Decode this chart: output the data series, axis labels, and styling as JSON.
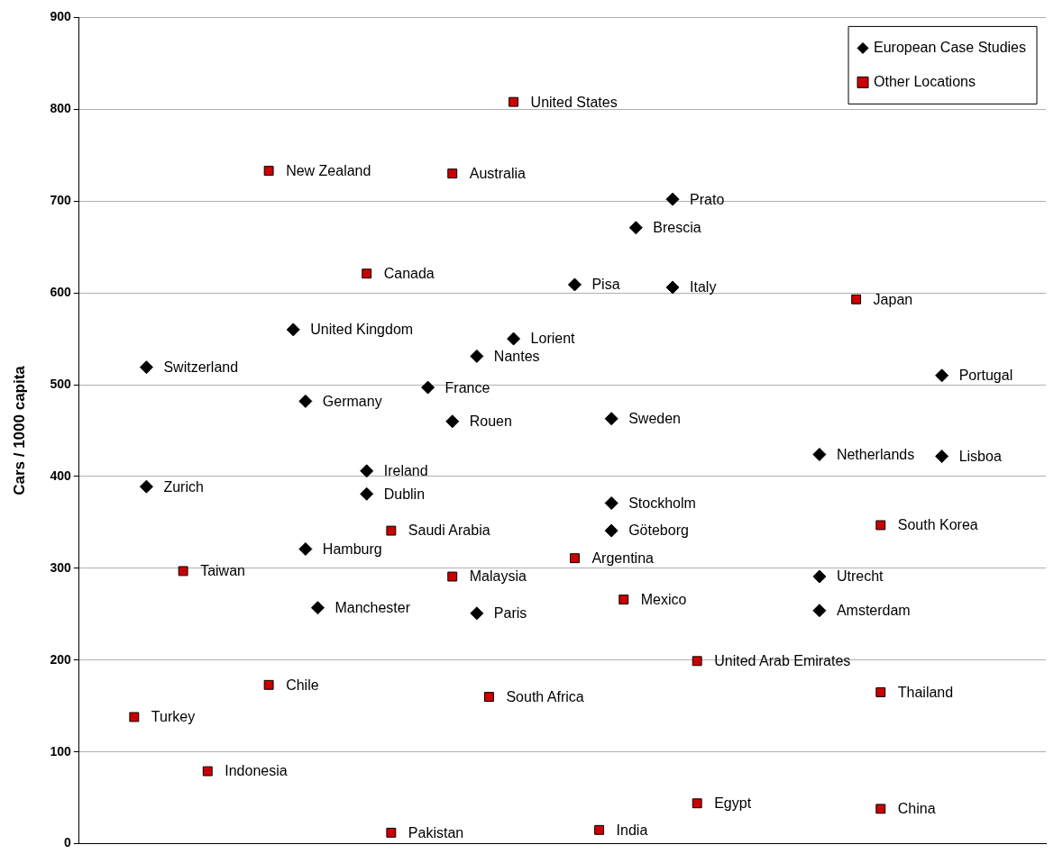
{
  "chart_data": {
    "type": "scatter",
    "ylabel": "Cars / 1000 capita",
    "ylim": [
      0,
      900
    ],
    "yticks": [
      0,
      100,
      200,
      300,
      400,
      500,
      600,
      700,
      800,
      900
    ],
    "tick_labels": "y",
    "grid": "y",
    "legend": "top right",
    "categories": [
      null,
      null,
      null,
      null,
      null,
      null,
      null,
      null,
      null,
      null,
      null,
      null,
      null,
      null,
      null,
      null,
      null,
      null,
      null,
      null,
      null,
      null,
      null,
      null,
      null,
      null,
      null,
      null,
      null,
      null,
      null,
      null,
      null,
      null,
      null,
      null,
      null,
      null,
      null,
      null,
      null,
      null,
      null,
      null,
      null,
      null,
      null,
      null,
      null,
      null,
      null,
      null,
      null,
      null,
      null,
      null,
      null,
      null,
      null,
      null,
      null,
      null,
      null,
      null,
      null,
      null,
      null,
      null,
      null,
      null,
      null,
      null,
      null,
      null,
      null,
      null,
      null,
      null,
      null
    ],
    "series": [
      {
        "name": "European Case Studies",
        "color": "#000000",
        "marker": "diamond",
        "values": [
          null,
          null,
          null,
          null,
          null,
          519,
          null,
          null,
          null,
          null,
          null,
          null,
          null,
          null,
          null,
          null,
          null,
          560,
          482,
          257,
          null,
          null,
          null,
          406,
          null,
          null,
          null,
          null,
          497,
          null,
          460,
          null,
          531,
          null,
          null,
          550,
          null,
          null,
          null,
          null,
          609,
          null,
          null,
          463,
          null,
          671,
          null,
          null,
          702,
          null,
          null,
          null,
          null,
          null,
          null,
          null,
          null,
          null,
          null,
          null,
          424,
          null,
          null,
          null,
          null,
          null,
          null,
          null,
          null,
          null,
          510,
          null,
          null,
          null,
          null,
          null,
          null,
          null,
          null
        ],
        "value_labels": [
          null,
          null,
          null,
          null,
          null,
          "Switzerland",
          null,
          null,
          null,
          null,
          null,
          null,
          null,
          null,
          null,
          null,
          null,
          "United Kingdom",
          "Germany",
          "Manchester",
          null,
          null,
          null,
          "Ireland",
          null,
          null,
          null,
          null,
          "France",
          null,
          "Rouen",
          null,
          "Nantes",
          null,
          null,
          "Lorient",
          null,
          null,
          null,
          null,
          "Pisa",
          null,
          null,
          "Sweden",
          null,
          "Brescia",
          null,
          null,
          "Prato",
          null,
          null,
          null,
          null,
          null,
          null,
          null,
          null,
          null,
          null,
          null,
          "Netherlands",
          null,
          null,
          null,
          null,
          null,
          null,
          null,
          null,
          null,
          "Portugal",
          null,
          null,
          null,
          null,
          null,
          null,
          null,
          null
        ]
      },
      {
        "color": "#000000",
        "marker": "diamond",
        "values": [
          null,
          null,
          null,
          null,
          null,
          389,
          null,
          null,
          null,
          null,
          null,
          null,
          null,
          null,
          null,
          null,
          null,
          null,
          321,
          null,
          null,
          null,
          null,
          381,
          null,
          null,
          null,
          null,
          null,
          null,
          null,
          null,
          251,
          null,
          null,
          null,
          null,
          null,
          null,
          null,
          null,
          null,
          null,
          371,
          null,
          null,
          null,
          null,
          606,
          null,
          null,
          null,
          null,
          null,
          null,
          null,
          null,
          null,
          null,
          null,
          291,
          null,
          null,
          null,
          null,
          null,
          null,
          null,
          null,
          null,
          422,
          null,
          null,
          null,
          null,
          null,
          null,
          null,
          null
        ],
        "value_labels": [
          null,
          null,
          null,
          null,
          null,
          "Zurich",
          null,
          null,
          null,
          null,
          null,
          null,
          null,
          null,
          null,
          null,
          null,
          null,
          "Hamburg",
          null,
          null,
          null,
          null,
          "Dublin",
          null,
          null,
          null,
          null,
          null,
          null,
          null,
          null,
          "Paris",
          null,
          null,
          null,
          null,
          null,
          null,
          null,
          null,
          null,
          null,
          "Stockholm",
          null,
          null,
          null,
          null,
          "Italy",
          null,
          null,
          null,
          null,
          null,
          null,
          null,
          null,
          null,
          null,
          null,
          "Utrecht",
          null,
          null,
          null,
          null,
          null,
          null,
          null,
          null,
          null,
          "Lisboa",
          null,
          null,
          null,
          null,
          null,
          null,
          null,
          null
        ]
      },
      {
        "color": "#000000",
        "marker": "diamond",
        "values": [
          null,
          null,
          null,
          null,
          null,
          null,
          null,
          null,
          null,
          null,
          null,
          null,
          null,
          null,
          null,
          null,
          null,
          null,
          null,
          null,
          null,
          null,
          null,
          null,
          null,
          null,
          null,
          null,
          null,
          null,
          null,
          null,
          null,
          null,
          null,
          null,
          null,
          null,
          null,
          null,
          null,
          null,
          null,
          341,
          null,
          null,
          null,
          null,
          null,
          null,
          null,
          null,
          null,
          null,
          null,
          null,
          null,
          null,
          null,
          null,
          254,
          null,
          null,
          null,
          null,
          null,
          null,
          null,
          null,
          null,
          null,
          null,
          null,
          null,
          null,
          null,
          null,
          null,
          null
        ],
        "value_labels": [
          null,
          null,
          null,
          null,
          null,
          null,
          null,
          null,
          null,
          null,
          null,
          null,
          null,
          null,
          null,
          null,
          null,
          null,
          null,
          null,
          null,
          null,
          null,
          null,
          null,
          null,
          null,
          null,
          null,
          null,
          null,
          null,
          null,
          null,
          null,
          null,
          null,
          null,
          null,
          null,
          null,
          null,
          null,
          "Göteborg",
          null,
          null,
          null,
          null,
          null,
          null,
          null,
          null,
          null,
          null,
          null,
          null,
          null,
          null,
          null,
          null,
          "Amsterdam",
          null,
          null,
          null,
          null,
          null,
          null,
          null,
          null,
          null,
          null,
          null,
          null,
          null,
          null,
          null,
          null,
          null,
          null
        ]
      },
      {
        "name": "Other Locations",
        "color": "#cc0000",
        "marker": "square",
        "values": [
          null,
          null,
          null,
          null,
          138,
          null,
          null,
          null,
          297,
          null,
          79,
          null,
          null,
          null,
          null,
          733,
          null,
          null,
          null,
          null,
          null,
          null,
          null,
          621,
          null,
          341,
          null,
          null,
          null,
          null,
          730,
          null,
          null,
          160,
          null,
          808,
          null,
          null,
          null,
          null,
          311,
          null,
          15,
          null,
          266,
          null,
          null,
          null,
          null,
          null,
          199,
          null,
          null,
          null,
          null,
          null,
          null,
          null,
          null,
          null,
          null,
          null,
          null,
          593,
          null,
          347,
          null,
          null,
          null,
          null,
          null,
          null,
          null,
          null,
          null,
          null,
          null,
          null,
          null
        ],
        "value_labels": [
          null,
          null,
          null,
          null,
          "Turkey",
          null,
          null,
          null,
          "Taiwan",
          null,
          "Indonesia",
          null,
          null,
          null,
          null,
          "New Zealand",
          null,
          null,
          null,
          null,
          null,
          null,
          null,
          "Canada",
          null,
          "Saudi Arabia",
          null,
          null,
          null,
          null,
          "Australia",
          null,
          null,
          "South Africa",
          null,
          "United States",
          null,
          null,
          null,
          null,
          "Argentina",
          null,
          "India",
          null,
          "Mexico",
          null,
          null,
          null,
          null,
          null,
          "United Arab Emirates",
          null,
          null,
          null,
          null,
          null,
          null,
          null,
          null,
          null,
          null,
          null,
          null,
          "Japan",
          null,
          "South Korea",
          null,
          null,
          null,
          null,
          null,
          null,
          null,
          null,
          null,
          null,
          null,
          null,
          null
        ]
      },
      {
        "color": "#cc0000",
        "marker": "square",
        "values": [
          null,
          null,
          null,
          null,
          null,
          null,
          null,
          null,
          null,
          null,
          null,
          null,
          null,
          null,
          null,
          173,
          null,
          null,
          null,
          null,
          null,
          null,
          null,
          null,
          null,
          12,
          null,
          null,
          null,
          null,
          291,
          null,
          null,
          null,
          null,
          null,
          null,
          null,
          null,
          null,
          null,
          null,
          null,
          null,
          null,
          null,
          null,
          null,
          null,
          null,
          44,
          null,
          null,
          null,
          null,
          null,
          null,
          null,
          null,
          null,
          null,
          null,
          null,
          null,
          null,
          165,
          null,
          null,
          null,
          null,
          null,
          null,
          null,
          null,
          null,
          null,
          null,
          null,
          null
        ],
        "value_labels": [
          null,
          null,
          null,
          null,
          null,
          null,
          null,
          null,
          null,
          null,
          null,
          null,
          null,
          null,
          null,
          "Chile",
          null,
          null,
          null,
          null,
          null,
          null,
          null,
          null,
          null,
          "Pakistan",
          null,
          null,
          null,
          null,
          "Malaysia",
          null,
          null,
          null,
          null,
          null,
          null,
          null,
          null,
          null,
          null,
          null,
          null,
          null,
          null,
          null,
          null,
          null,
          null,
          null,
          "Egypt",
          null,
          null,
          null,
          null,
          null,
          null,
          null,
          null,
          null,
          null,
          null,
          null,
          null,
          null,
          "Thailand",
          null,
          null,
          null,
          null,
          null,
          null,
          null,
          null,
          null,
          null,
          null,
          null,
          null
        ]
      },
      {
        "color": "#cc0000",
        "marker": "square",
        "values": [
          null,
          null,
          null,
          null,
          null,
          null,
          null,
          null,
          null,
          null,
          null,
          null,
          null,
          null,
          null,
          null,
          null,
          null,
          null,
          null,
          null,
          null,
          null,
          null,
          null,
          null,
          null,
          null,
          null,
          null,
          null,
          null,
          null,
          null,
          null,
          null,
          null,
          null,
          null,
          null,
          null,
          null,
          null,
          null,
          null,
          null,
          null,
          null,
          null,
          null,
          null,
          null,
          null,
          null,
          null,
          null,
          null,
          null,
          null,
          null,
          null,
          null,
          null,
          null,
          null,
          38,
          null,
          null,
          null,
          null,
          null,
          null,
          null,
          null,
          null,
          null,
          null,
          null,
          null
        ],
        "value_labels": [
          null,
          null,
          null,
          null,
          null,
          null,
          null,
          null,
          null,
          null,
          null,
          null,
          null,
          null,
          null,
          null,
          null,
          null,
          null,
          null,
          null,
          null,
          null,
          null,
          null,
          null,
          null,
          null,
          null,
          null,
          null,
          null,
          null,
          null,
          null,
          null,
          null,
          null,
          null,
          null,
          null,
          null,
          null,
          null,
          null,
          null,
          null,
          null,
          null,
          null,
          null,
          null,
          null,
          null,
          null,
          null,
          null,
          null,
          null,
          null,
          null,
          null,
          null,
          null,
          null,
          "China",
          null,
          null,
          null,
          null,
          null,
          null,
          null,
          null,
          null,
          null,
          null,
          null,
          null
        ]
      }
    ]
  }
}
